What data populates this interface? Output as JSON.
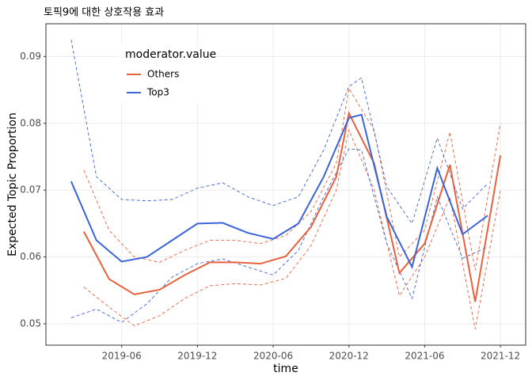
{
  "chart_data": {
    "type": "line",
    "title": "토픽9에 대한 상호작용 효과",
    "x_label": "time",
    "y_label": "Expected Topic Proportion",
    "legend_title": "moderator.value",
    "xlim": [
      "2018-12",
      "2022-02"
    ],
    "xticks": [
      {
        "value": "2019-06",
        "label": "2019-06"
      },
      {
        "value": "2019-12",
        "label": "2019-12"
      },
      {
        "value": "2020-06",
        "label": "2020-06"
      },
      {
        "value": "2020-12",
        "label": "2020-12"
      },
      {
        "value": "2021-06",
        "label": "2021-06"
      },
      {
        "value": "2021-12",
        "label": "2021-12"
      }
    ],
    "ylim": [
      0.0468,
      0.0949
    ],
    "yticks": [
      0.05,
      0.06,
      0.07,
      0.08,
      0.09
    ],
    "grid": true,
    "series": [
      {
        "name": "Others",
        "color": "#e8603c",
        "x": [
          "2019-03",
          "2019-05",
          "2019-07",
          "2019-09",
          "2019-11",
          "2020-01",
          "2020-03",
          "2020-05",
          "2020-07",
          "2020-09",
          "2020-11",
          "2020-12",
          "2021-02",
          "2021-04",
          "2021-06",
          "2021-08",
          "2021-10",
          "2021-12"
        ],
        "values": [
          0.0638,
          0.0567,
          0.0544,
          0.0551,
          0.0573,
          0.0592,
          0.0592,
          0.059,
          0.0601,
          0.0645,
          0.072,
          0.0815,
          0.074,
          0.0576,
          0.062,
          0.0738,
          0.0533,
          0.0752
        ],
        "upper": [
          0.073,
          0.064,
          0.06,
          0.0592,
          0.061,
          0.0625,
          0.0625,
          0.062,
          0.0632,
          0.0668,
          0.074,
          0.0852,
          0.079,
          0.06,
          0.064,
          0.0787,
          0.058,
          0.08
        ],
        "lower": [
          0.0555,
          0.0525,
          0.0497,
          0.0512,
          0.0538,
          0.0557,
          0.056,
          0.0558,
          0.0568,
          0.0617,
          0.07,
          0.079,
          0.07,
          0.0542,
          0.06,
          0.069,
          0.0492,
          0.07
        ]
      },
      {
        "name": "Top3",
        "color": "#3a64d8",
        "x": [
          "2019-02",
          "2019-04",
          "2019-06",
          "2019-08",
          "2019-10",
          "2019-12",
          "2020-02",
          "2020-04",
          "2020-06",
          "2020-08",
          "2020-10",
          "2020-12",
          "2021-01",
          "2021-03",
          "2021-05",
          "2021-07",
          "2021-09",
          "2021-11"
        ],
        "values": [
          0.0713,
          0.0625,
          0.0593,
          0.06,
          0.0625,
          0.065,
          0.0651,
          0.0636,
          0.0627,
          0.065,
          0.072,
          0.0808,
          0.0813,
          0.066,
          0.0585,
          0.0733,
          0.0634,
          0.0662
        ],
        "upper": [
          0.0925,
          0.072,
          0.0686,
          0.0684,
          0.0686,
          0.0703,
          0.0711,
          0.069,
          0.0677,
          0.069,
          0.076,
          0.0855,
          0.0868,
          0.0705,
          0.065,
          0.0778,
          0.0672,
          0.071
        ],
        "lower": [
          0.0509,
          0.0522,
          0.0502,
          0.053,
          0.057,
          0.059,
          0.0597,
          0.0585,
          0.0573,
          0.061,
          0.069,
          0.0762,
          0.076,
          0.062,
          0.0538,
          0.069,
          0.0598,
          0.0615
        ]
      }
    ]
  }
}
